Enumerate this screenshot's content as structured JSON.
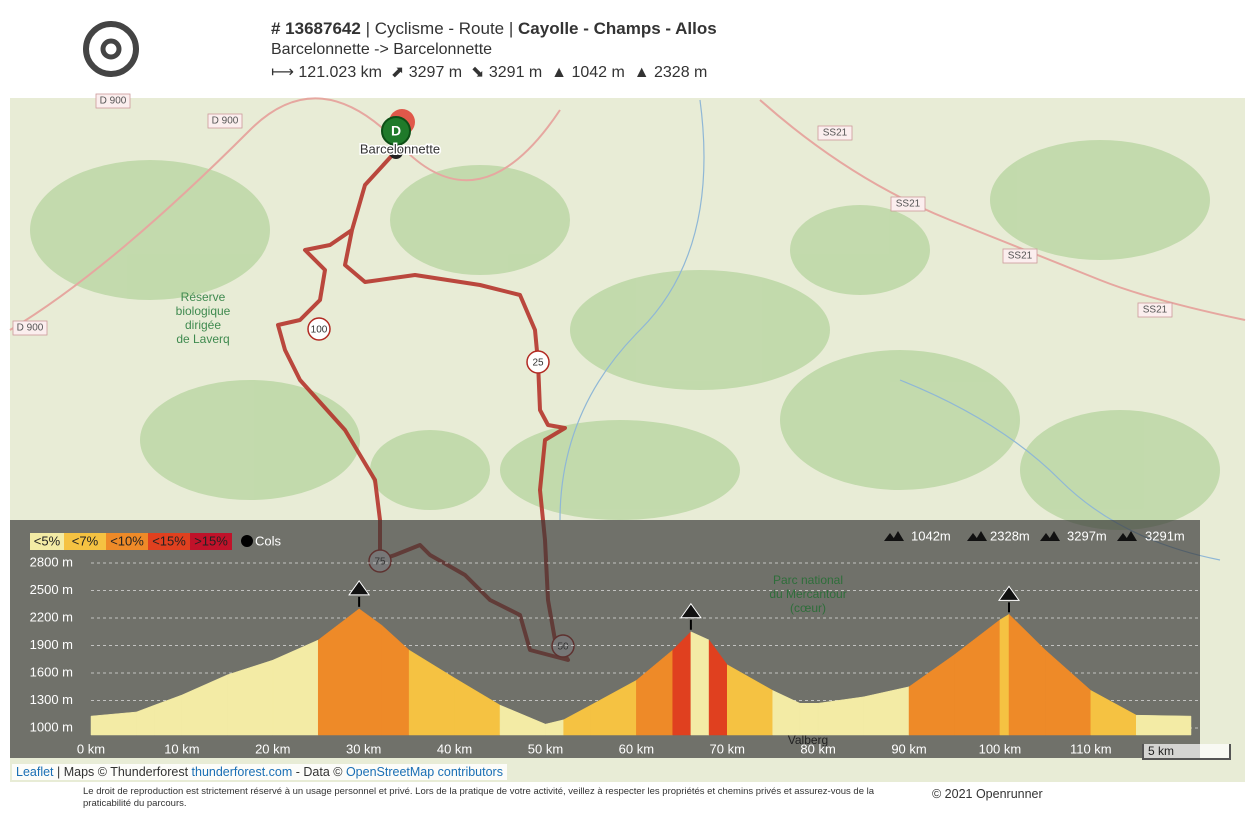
{
  "header": {
    "id": "# 13687642",
    "sep": "|",
    "sport": "Cyclisme - Route",
    "name": "Cayolle - Champs - Allos",
    "route": "Barcelonnette -> Barcelonnette",
    "distance": "121.023 km",
    "ascent": "3297 m",
    "descent": "3291 m",
    "min_alt": "1042 m",
    "max_alt": "2328 m"
  },
  "map": {
    "start_marker": "D",
    "town": "Barcelonnette",
    "road_labels": [
      "D 900",
      "D 900",
      "D 900",
      "SS21",
      "SS21",
      "SS21",
      "SS21"
    ],
    "reserve_lines": [
      "Réserve",
      "biologique",
      "dirigée",
      "de Laverq"
    ],
    "park_lines": [
      "Parc national",
      "du Mercantour",
      "(cœur)"
    ],
    "valberg": "Valberg",
    "km_markers": [
      "100",
      "25",
      "75",
      "50"
    ],
    "scale": "5 km"
  },
  "chart_data": {
    "type": "area",
    "slope_legend": [
      {
        "value": 5,
        "label": "<5%",
        "color": "#f3eba5"
      },
      {
        "value": 7,
        "label": "<7%",
        "color": "#f5c242"
      },
      {
        "value": 10,
        "label": "<10%",
        "color": "#ee8a28"
      },
      {
        "value": 15,
        "label": "<15%",
        "color": "#e0401f"
      },
      {
        "value": 15,
        "label": ">15%",
        "color": "#c0122a"
      }
    ],
    "cols_label": "Cols",
    "cols_x": [
      29.5,
      66,
      101
    ],
    "stats": [
      "1042m",
      "2328m",
      "3297m",
      "3291m"
    ],
    "x": [
      0,
      5,
      7,
      10,
      15,
      20,
      25,
      29.5,
      32,
      35,
      40,
      45,
      50,
      52,
      55,
      60,
      64,
      66,
      68,
      70,
      75,
      78,
      80,
      85,
      90,
      95,
      100,
      101,
      105,
      110,
      115,
      121.023
    ],
    "values": [
      1130,
      1175,
      1250,
      1360,
      1580,
      1740,
      1960,
      2300,
      2120,
      1850,
      1545,
      1250,
      1042,
      1090,
      1250,
      1520,
      1850,
      2050,
      1960,
      1690,
      1410,
      1270,
      1270,
      1340,
      1450,
      1800,
      2180,
      2240,
      1850,
      1410,
      1140,
      1130
    ],
    "xlim": [
      0,
      121.023
    ],
    "ylim": [
      1000,
      2800
    ],
    "yticks": [
      {
        "value": 1000,
        "label": "1000 m"
      },
      {
        "value": 1300,
        "label": "1300 m"
      },
      {
        "value": 1600,
        "label": "1600 m"
      },
      {
        "value": 1900,
        "label": "1900 m"
      },
      {
        "value": 2200,
        "label": "2200 m"
      },
      {
        "value": 2500,
        "label": "2500 m"
      },
      {
        "value": 2800,
        "label": "2800 m"
      }
    ],
    "xticks": [
      {
        "value": 0,
        "label": "0 km"
      },
      {
        "value": 10,
        "label": "10 km"
      },
      {
        "value": 20,
        "label": "20 km"
      },
      {
        "value": 30,
        "label": "30 km"
      },
      {
        "value": 40,
        "label": "40 km"
      },
      {
        "value": 50,
        "label": "50 km"
      },
      {
        "value": 60,
        "label": "60 km"
      },
      {
        "value": 70,
        "label": "70 km"
      },
      {
        "value": 80,
        "label": "80 km"
      },
      {
        "value": 90,
        "label": "90 km"
      },
      {
        "value": 100,
        "label": "100 km"
      },
      {
        "value": 110,
        "label": "110 km"
      }
    ],
    "grid": true
  },
  "footer": {
    "attribution": [
      "Leaflet",
      " | Maps © Thunderforest ",
      "thunderforest.com",
      " - Data © ",
      "OpenStreetMap contributors"
    ],
    "disclaimer": "Le droit de reproduction est strictement réservé à un usage personnel et privé. Lors de la pratique de votre activité, veillez à respecter les propriétés et chemins privés et assurez-vous de la praticabilité du parcours.",
    "copyright": "© 2021 Openrunner"
  }
}
